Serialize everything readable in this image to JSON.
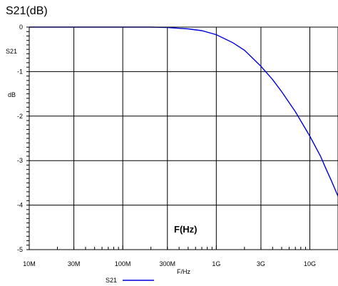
{
  "chart_data": {
    "type": "line",
    "title": "S21(dB)",
    "ylabel_lines": [
      "S21",
      "dB"
    ],
    "xlabel": "F/Hz",
    "annotation": "F(Hz)",
    "x_scale": "log",
    "xlim": [
      10000000,
      20000000000
    ],
    "ylim": [
      -5,
      0
    ],
    "x_ticks": [
      {
        "value": 10000000,
        "label": "10M"
      },
      {
        "value": 30000000,
        "label": "30M"
      },
      {
        "value": 100000000,
        "label": "100M"
      },
      {
        "value": 300000000,
        "label": "300M"
      },
      {
        "value": 1000000000,
        "label": "1G"
      },
      {
        "value": 3000000000,
        "label": "3G"
      },
      {
        "value": 10000000000,
        "label": "10G"
      }
    ],
    "y_ticks": [
      {
        "value": 0,
        "label": "0"
      },
      {
        "value": -1,
        "label": "-1"
      },
      {
        "value": -2,
        "label": "-2"
      },
      {
        "value": -3,
        "label": "-3"
      },
      {
        "value": -4,
        "label": "-4"
      },
      {
        "value": -5,
        "label": "-5"
      }
    ],
    "grid": true,
    "legend_position": "bottom-center",
    "series": [
      {
        "name": "S21",
        "color": "#0000dd",
        "x": [
          10000000,
          20000000,
          50000000,
          100000000,
          200000000,
          300000000,
          500000000,
          700000000,
          1000000000,
          1500000000,
          2000000000,
          3000000000,
          4000000000,
          5000000000,
          7000000000,
          10000000000,
          13000000000,
          15000000000,
          17000000000,
          20000000000
        ],
        "y": [
          0,
          0,
          0,
          0,
          0,
          -0.01,
          -0.04,
          -0.08,
          -0.17,
          -0.35,
          -0.52,
          -0.88,
          -1.18,
          -1.45,
          -1.9,
          -2.45,
          -2.9,
          -3.2,
          -3.45,
          -3.8
        ]
      }
    ]
  }
}
